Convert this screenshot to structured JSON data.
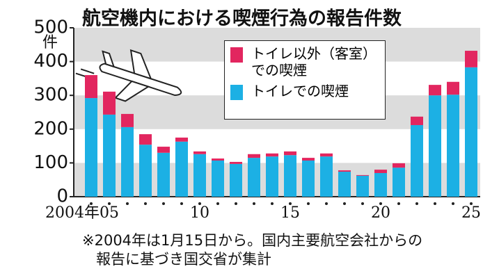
{
  "chart_data": {
    "type": "stacked_bar",
    "title": "航空機内における喫煙行為の報告件数",
    "y_unit": "件",
    "categories": [
      "2004年",
      null,
      null,
      null,
      null,
      null,
      "10",
      null,
      null,
      null,
      null,
      "15",
      null,
      null,
      null,
      null,
      "20",
      null,
      null,
      null,
      null,
      "25"
    ],
    "category_labels_extra": [
      {
        "index": 1,
        "label": "05"
      }
    ],
    "series": [
      {
        "name": "トイレでの喫煙",
        "color": "#1cb0e4",
        "values": [
          292,
          243,
          206,
          154,
          130,
          163,
          126,
          107,
          97,
          115,
          119,
          123,
          107,
          119,
          74,
          62,
          70,
          86,
          212,
          300,
          302,
          383
        ]
      },
      {
        "name": "トイレ以外（客室）での喫煙",
        "color": "#e2265f",
        "values": [
          68,
          68,
          39,
          31,
          18,
          12,
          8,
          6,
          6,
          11,
          9,
          11,
          8,
          9,
          4,
          2,
          10,
          13,
          25,
          31,
          38,
          49
        ]
      }
    ],
    "ylim": [
      0,
      500
    ],
    "yticks": [
      0,
      100,
      200,
      300,
      400,
      500
    ],
    "bands": true,
    "note": [
      "※2004年は1月15日から。国内主要航空会社からの",
      "報告に基づき国交省が集計"
    ]
  }
}
